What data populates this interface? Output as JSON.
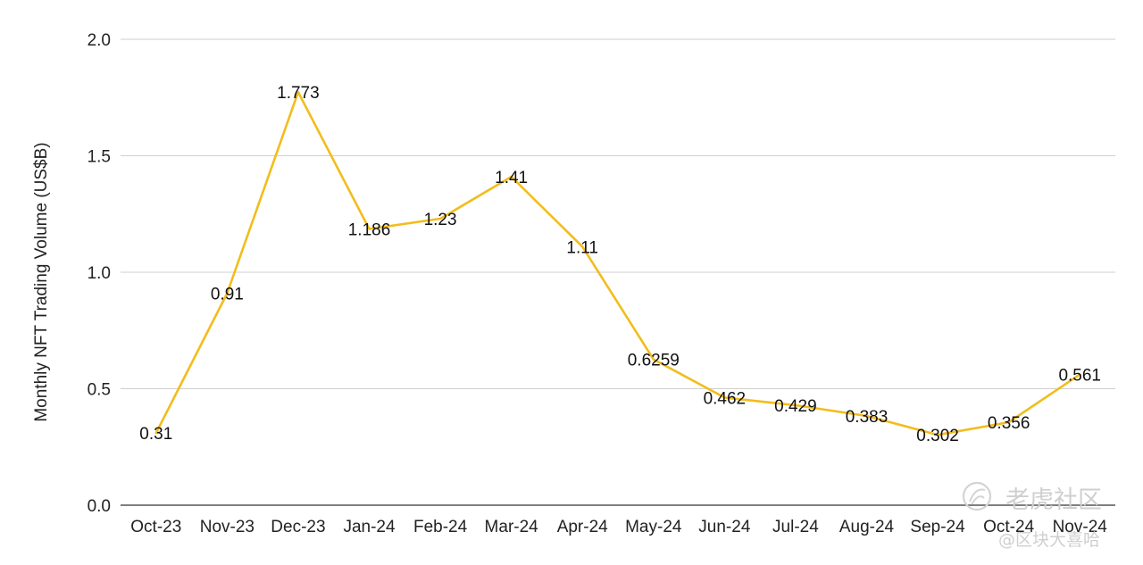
{
  "chart_data": {
    "type": "line",
    "title": "",
    "xlabel": "",
    "ylabel": "Monthly NFT Trading Volume (US$B)",
    "categories": [
      "Oct-23",
      "Nov-23",
      "Dec-23",
      "Jan-24",
      "Feb-24",
      "Mar-24",
      "Apr-24",
      "May-24",
      "Jun-24",
      "Jul-24",
      "Aug-24",
      "Sep-24",
      "Oct-24",
      "Nov-24"
    ],
    "series": [
      {
        "values": [
          0.31,
          0.91,
          1.773,
          1.186,
          1.23,
          1.41,
          1.11,
          0.6259,
          0.462,
          0.429,
          0.383,
          0.302,
          0.356,
          0.561
        ],
        "labels": [
          "0.31",
          "0.91",
          "1.773",
          "1.186",
          "1.23",
          "1.41",
          "1.11",
          "0.6259",
          "0.462",
          "0.429",
          "0.383",
          "0.302",
          "0.356",
          "0.561"
        ],
        "color": "#f2bd1c"
      }
    ],
    "ylim": [
      0,
      2
    ],
    "yticks": [
      "0.0",
      "0.5",
      "1.0",
      "1.5",
      "2.0"
    ],
    "grid": true,
    "legend": "none"
  },
  "watermark": {
    "line1": "老虎社区",
    "line2": "@区块大喜哈",
    "icon": "tiger-logo-icon"
  }
}
